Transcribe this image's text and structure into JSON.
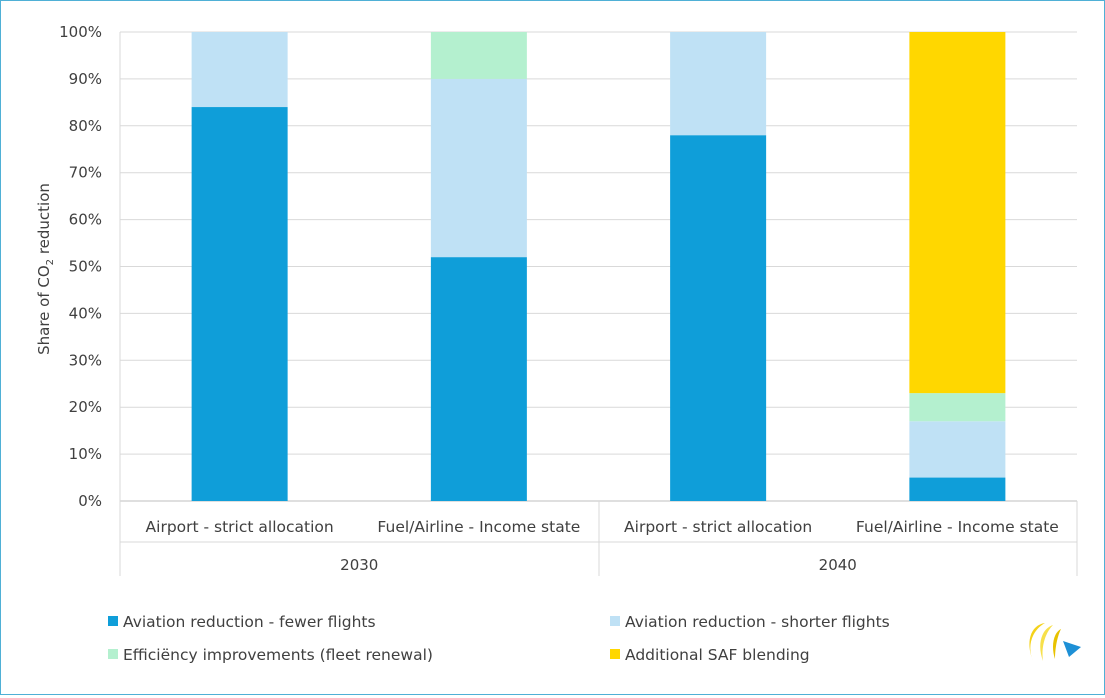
{
  "chart_data": {
    "type": "bar",
    "stacked": true,
    "ylabel_prefix": "Share of CO",
    "ylabel_sub": "2",
    "ylabel_suffix": " reduction",
    "yticks": [
      "0%",
      "10%",
      "20%",
      "30%",
      "40%",
      "50%",
      "60%",
      "70%",
      "80%",
      "90%",
      "100%"
    ],
    "ylim": [
      0,
      100
    ],
    "grid": true,
    "legend_position": "bottom",
    "groups": [
      {
        "label": "2030",
        "categories": [
          "Airport - strict allocation",
          "Fuel/Airline - Income state"
        ]
      },
      {
        "label": "2040",
        "categories": [
          "Airport - strict allocation",
          "Fuel/Airline - Income state"
        ]
      }
    ],
    "categories": [
      "Airport - strict allocation",
      "Fuel/Airline - Income state",
      "Airport - strict allocation",
      "Fuel/Airline - Income state"
    ],
    "series": [
      {
        "name": "Aviation reduction - fewer flights",
        "color": "#0f9ed9",
        "values": [
          84,
          52,
          78,
          5
        ]
      },
      {
        "name": "Aviation reduction - shorter flights",
        "color": "#bfe1f5",
        "values": [
          16,
          38,
          22,
          12
        ]
      },
      {
        "name": "Efficiëncy improvements (fleet renewal)",
        "color": "#b4f0cf",
        "values": [
          0,
          10,
          0,
          6
        ]
      },
      {
        "name": "Additional SAF blending",
        "color": "#ffd700",
        "values": [
          0,
          0,
          0,
          77
        ]
      }
    ]
  }
}
